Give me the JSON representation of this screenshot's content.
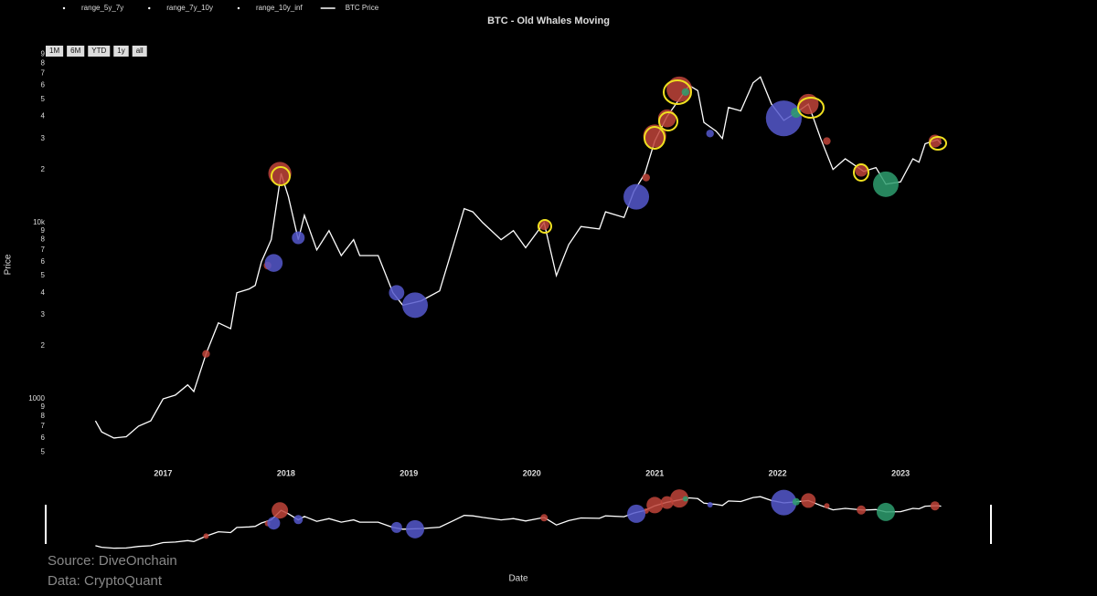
{
  "chart_data": {
    "type": "line",
    "title": "BTC - Old Whales Moving",
    "x_label": "Date",
    "y_label": "Price",
    "log_y": true,
    "xlim": [
      2016.06,
      2023.78
    ],
    "xticks": [
      2017,
      2018,
      2019,
      2020,
      2021,
      2022,
      2023
    ],
    "ylim": [
      450,
      95000
    ],
    "yticks": [
      {
        "value": 500,
        "label": "5"
      },
      {
        "value": 600,
        "label": "6"
      },
      {
        "value": 700,
        "label": "7"
      },
      {
        "value": 800,
        "label": "8"
      },
      {
        "value": 900,
        "label": "9"
      },
      1000,
      {
        "value": 2000,
        "label": "2"
      },
      {
        "value": 3000,
        "label": "3"
      },
      {
        "value": 4000,
        "label": "4"
      },
      {
        "value": 5000,
        "label": "5"
      },
      {
        "value": 6000,
        "label": "6"
      },
      {
        "value": 7000,
        "label": "7"
      },
      {
        "value": 8000,
        "label": "8"
      },
      {
        "value": 9000,
        "label": "9"
      },
      {
        "value": 10000,
        "label": "10k"
      },
      {
        "value": 20000,
        "label": "2"
      },
      {
        "value": 30000,
        "label": "3"
      },
      {
        "value": 40000,
        "label": "4"
      },
      {
        "value": 50000,
        "label": "5"
      },
      {
        "value": 60000,
        "label": "6"
      },
      {
        "value": 70000,
        "label": "7"
      },
      {
        "value": 80000,
        "label": "8"
      },
      {
        "value": 90000,
        "label": "9"
      }
    ],
    "range_buttons": [
      "1M",
      "6M",
      "YTD",
      "1y",
      "all"
    ],
    "annotations": [
      "Source: DiveOnchain",
      "Data: CryptoQuant"
    ],
    "series": [
      {
        "name": "range_5y_7y",
        "type": "bubble",
        "color": "#c0443a",
        "x": [
          2017.35,
          2017.85,
          2017.95,
          2020.1,
          2020.93,
          2021.0,
          2021.1,
          2021.2,
          2022.25,
          2022.4,
          2022.68,
          2023.28
        ],
        "values": [
          1800,
          5700,
          19000,
          9700,
          18000,
          31000,
          39000,
          57000,
          47000,
          29000,
          19800,
          29000
        ],
        "sizes": [
          3,
          3,
          9,
          4,
          3,
          9,
          7,
          10,
          8,
          3,
          5,
          5
        ]
      },
      {
        "name": "range_7y_10y",
        "type": "bubble",
        "color": "#5558cc",
        "x": [
          2017.9,
          2018.1,
          2018.9,
          2019.05,
          2020.85,
          2022.05,
          2021.45
        ],
        "values": [
          5900,
          8200,
          4000,
          3400,
          14000,
          39000,
          32000
        ],
        "sizes": [
          7,
          5,
          6,
          10,
          10,
          14,
          3
        ]
      },
      {
        "name": "range_10y_inf",
        "type": "bubble",
        "color": "#2e9e6e",
        "x": [
          2022.88,
          2022.15,
          2021.25
        ],
        "values": [
          16500,
          42000,
          55000
        ],
        "sizes": [
          10,
          4,
          3
        ]
      },
      {
        "name": "BTC Price",
        "type": "line",
        "color": "#ffffff",
        "x": [
          2016.45,
          2016.5,
          2016.6,
          2016.7,
          2016.8,
          2016.9,
          2017.0,
          2017.1,
          2017.2,
          2017.25,
          2017.35,
          2017.45,
          2017.55,
          2017.6,
          2017.7,
          2017.75,
          2017.8,
          2017.88,
          2017.96,
          2018.02,
          2018.1,
          2018.15,
          2018.25,
          2018.35,
          2018.45,
          2018.55,
          2018.6,
          2018.75,
          2018.87,
          2018.95,
          2019.1,
          2019.25,
          2019.35,
          2019.45,
          2019.52,
          2019.6,
          2019.75,
          2019.85,
          2019.95,
          2020.1,
          2020.2,
          2020.3,
          2020.4,
          2020.55,
          2020.6,
          2020.75,
          2020.83,
          2020.92,
          2021.0,
          2021.1,
          2021.2,
          2021.28,
          2021.35,
          2021.4,
          2021.5,
          2021.55,
          2021.6,
          2021.7,
          2021.8,
          2021.86,
          2021.95,
          2022.05,
          2022.15,
          2022.25,
          2022.35,
          2022.45,
          2022.55,
          2022.7,
          2022.8,
          2022.88,
          2023.0,
          2023.1,
          2023.15,
          2023.2,
          2023.3,
          2023.33
        ],
        "values": [
          750,
          650,
          600,
          610,
          700,
          750,
          1000,
          1050,
          1200,
          1100,
          1800,
          2700,
          2500,
          4000,
          4200,
          4400,
          6000,
          8000,
          19000,
          14000,
          8000,
          11000,
          7000,
          9000,
          6500,
          8000,
          6500,
          6500,
          4000,
          3400,
          3600,
          4100,
          7000,
          12000,
          11500,
          10000,
          8000,
          9000,
          7200,
          10000,
          5000,
          7500,
          9500,
          9200,
          11500,
          10700,
          15000,
          19000,
          29000,
          40000,
          50000,
          60000,
          56000,
          37000,
          33000,
          30000,
          45000,
          43000,
          62000,
          67000,
          47000,
          38000,
          42000,
          47000,
          30000,
          20000,
          23000,
          19500,
          20500,
          16500,
          17000,
          23000,
          22000,
          28000,
          29500,
          28000
        ]
      }
    ]
  }
}
